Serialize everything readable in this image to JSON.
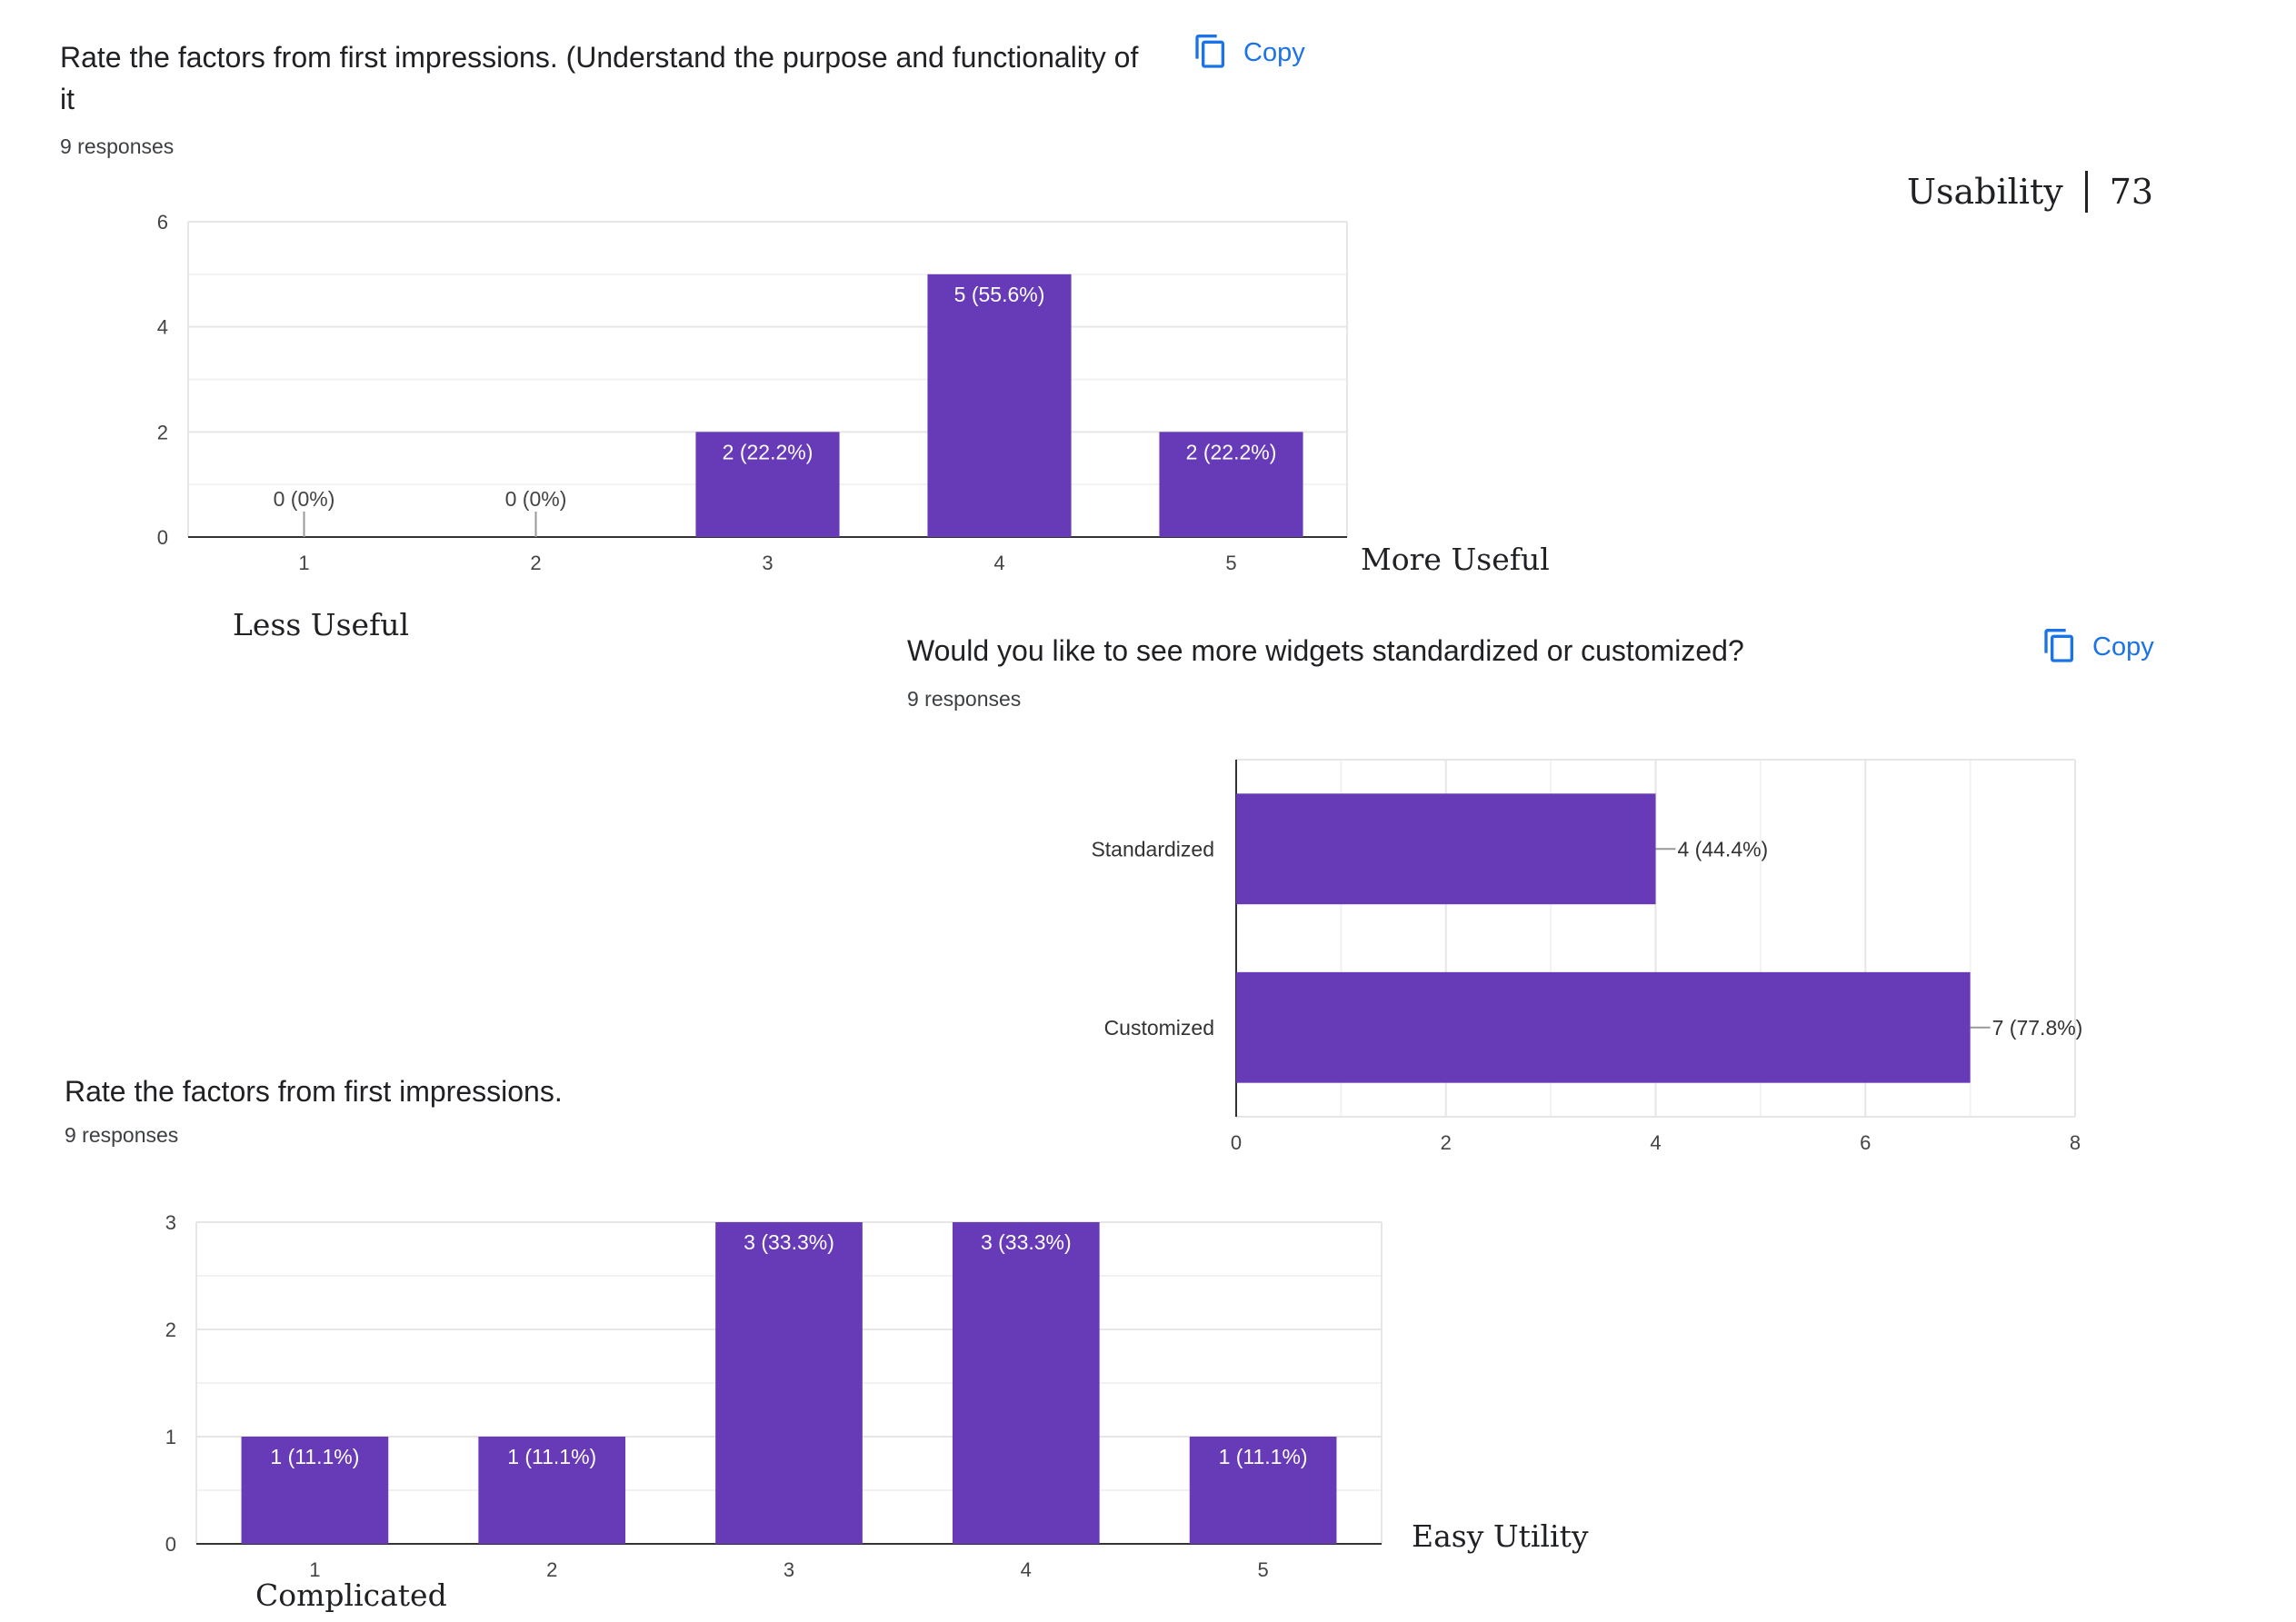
{
  "page_header": {
    "section": "Usability",
    "page_number": "73"
  },
  "copy_label": "Copy",
  "charts": [
    {
      "question": "Rate the factors from first impressions. (Understand the purpose and functionality of it",
      "responses": "9 responses",
      "left_label": "Less Useful",
      "right_label": "More Useful"
    },
    {
      "question": "Would you like to see more widgets standardized or customized?",
      "responses": "9 responses"
    },
    {
      "question": "Rate the factors from first impressions.",
      "responses": "9 responses",
      "left_label": "Complicated",
      "right_label": "Easy Utility"
    }
  ],
  "chart_data": [
    {
      "type": "bar",
      "categories": [
        "1",
        "2",
        "3",
        "4",
        "5"
      ],
      "values": [
        0,
        0,
        2,
        5,
        2
      ],
      "data_labels": [
        "0 (0%)",
        "0 (0%)",
        "2 (22.2%)",
        "5 (55.6%)",
        "2 (22.2%)"
      ],
      "ylim": [
        0,
        6
      ],
      "yticks": [
        "0",
        "2",
        "4",
        "6"
      ],
      "grid": true,
      "bar_color": "#673ab7"
    },
    {
      "type": "bar",
      "orientation": "horizontal",
      "categories": [
        "Standardized",
        "Customized"
      ],
      "values": [
        4,
        7
      ],
      "data_labels": [
        "4 (44.4%)",
        "7 (77.8%)"
      ],
      "xlim": [
        0,
        8
      ],
      "xticks": [
        "0",
        "2",
        "4",
        "6",
        "8"
      ],
      "grid": true,
      "bar_color": "#673ab7"
    },
    {
      "type": "bar",
      "categories": [
        "1",
        "2",
        "3",
        "4",
        "5"
      ],
      "values": [
        1,
        1,
        3,
        3,
        1
      ],
      "data_labels": [
        "1 (11.1%)",
        "1 (11.1%)",
        "3 (33.3%)",
        "3 (33.3%)",
        "1 (11.1%)"
      ],
      "ylim": [
        0,
        3
      ],
      "yticks": [
        "0",
        "1",
        "2",
        "3"
      ],
      "grid": true,
      "bar_color": "#673ab7"
    }
  ]
}
